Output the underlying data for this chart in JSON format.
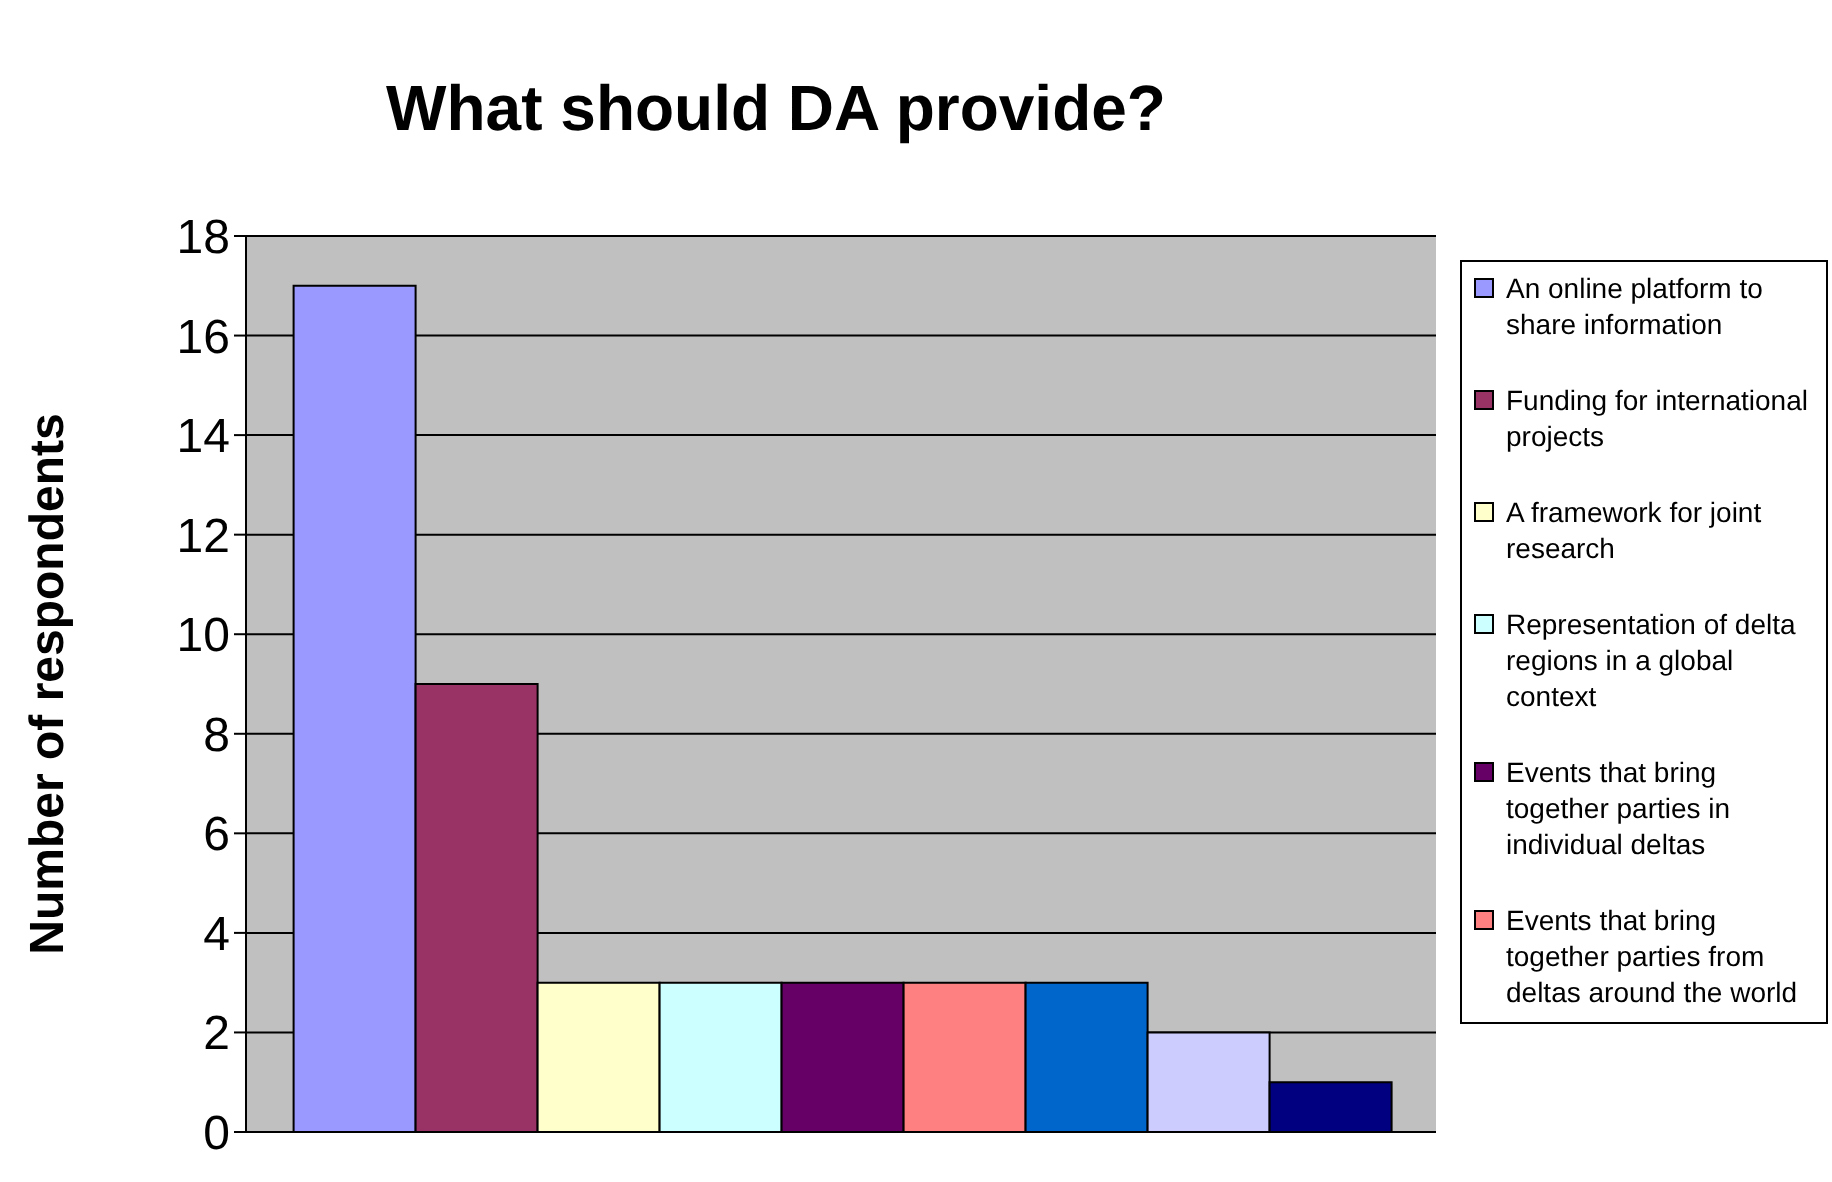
{
  "chart_data": {
    "type": "bar",
    "title": "What should DA provide?",
    "ylabel": "Number of respondents",
    "categories": [
      null
    ],
    "series": [
      {
        "name": "An online platform to share information",
        "color": "#9999ff",
        "values": [
          17
        ]
      },
      {
        "name": "Funding for international projects",
        "color": "#993366",
        "values": [
          9
        ]
      },
      {
        "name": "A framework for joint research",
        "color": "#ffffcc",
        "values": [
          3
        ]
      },
      {
        "name": "Representation of delta regions in a global context",
        "color": "#ccffff",
        "values": [
          3
        ]
      },
      {
        "name": "Events that bring together parties in individual deltas",
        "color": "#660066",
        "values": [
          3
        ]
      },
      {
        "name": "Events that bring together parties from deltas around the world",
        "color": "#ff8080",
        "values": [
          3
        ]
      },
      {
        "color": "#0066cc",
        "values": [
          3
        ]
      },
      {
        "color": "#ccccff",
        "values": [
          2
        ]
      },
      {
        "color": "#000080",
        "values": [
          1
        ]
      }
    ],
    "ylim": [
      0,
      18
    ],
    "yticks": [
      0,
      2,
      4,
      6,
      8,
      10,
      12,
      14,
      16,
      18
    ],
    "grid": "y",
    "legend": "right"
  }
}
